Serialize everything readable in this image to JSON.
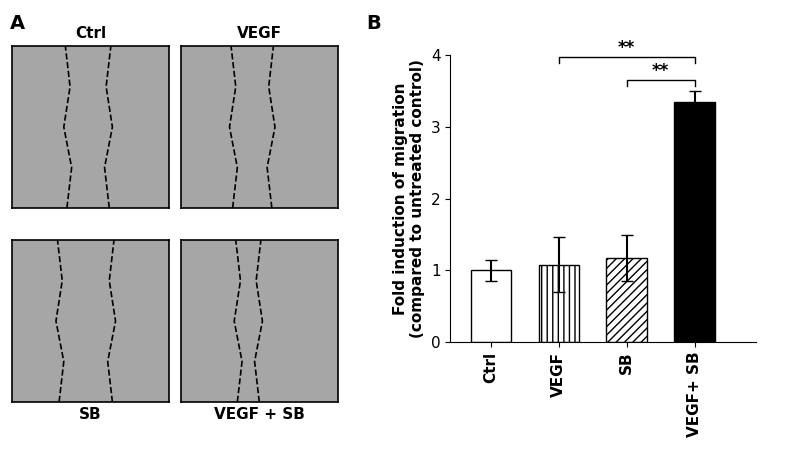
{
  "chart_data": {
    "type": "bar",
    "categories": [
      "Ctrl",
      "VEGF",
      "SB",
      "VEGF+ SB"
    ],
    "values": [
      1.0,
      1.08,
      1.17,
      3.35
    ],
    "errors": [
      0.15,
      0.38,
      0.32,
      0.15
    ],
    "colors": [
      "#ffffff",
      "#ffffff",
      "#ffffff",
      "#000000"
    ],
    "ylabel": "Fold induction of migration\n(compared to untreated control)",
    "ylim": [
      0,
      4
    ],
    "yticks": [
      0,
      1,
      2,
      3,
      4
    ],
    "grid": false,
    "annotations": [
      {
        "from": "VEGF",
        "to": "VEGF+ SB",
        "label": "**"
      },
      {
        "from": "SB",
        "to": "VEGF+ SB",
        "label": "**"
      }
    ]
  },
  "panel_labels": [
    "A",
    "B"
  ],
  "images": {
    "labels": [
      "Ctrl",
      "VEGF",
      "SB",
      "VEGF + SB"
    ]
  }
}
